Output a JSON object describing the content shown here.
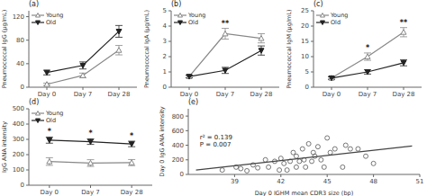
{
  "chart_data": [
    {
      "type": "line",
      "title": "(a)",
      "ylabel": "Pneumococcal IgG (µg/mL)",
      "categories": [
        "Day 0",
        "Day 7",
        "Day 28"
      ],
      "series": [
        {
          "name": "Young",
          "color": "#888888",
          "marker": "triangle-up-open",
          "values": [
            5,
            20,
            63
          ],
          "errors": [
            2,
            4,
            8
          ]
        },
        {
          "name": "Old",
          "color": "#222222",
          "marker": "triangle-down",
          "values": [
            25,
            37,
            95
          ],
          "errors": [
            4,
            6,
            10
          ]
        }
      ],
      "ylim": [
        0,
        130
      ],
      "yticks": [
        0,
        40,
        80,
        120
      ],
      "legend": "upper left"
    },
    {
      "type": "line",
      "title": "(b)",
      "ylabel": "Pneumococcal IgA (µg/mL)",
      "categories": [
        "Day 0",
        "Day 7",
        "Day 28"
      ],
      "series": [
        {
          "name": "Young",
          "color": "#888888",
          "marker": "triangle-up-open",
          "values": [
            0.7,
            3.5,
            3.2
          ],
          "errors": [
            0.08,
            0.35,
            0.3
          ]
        },
        {
          "name": "Old",
          "color": "#222222",
          "marker": "triangle-down",
          "values": [
            0.7,
            1.1,
            2.4
          ],
          "errors": [
            0.08,
            0.2,
            0.3
          ]
        }
      ],
      "ylim": [
        0,
        5
      ],
      "yticks": [
        0,
        1,
        2,
        3,
        4,
        5
      ],
      "legend": "upper left",
      "annotations": [
        {
          "category": "Day 7",
          "text": "**"
        }
      ]
    },
    {
      "type": "line",
      "title": "(c)",
      "ylabel": "Pneumococcal IgM (µg/mL)",
      "categories": [
        "Day 0",
        "Day 7",
        "Day 28"
      ],
      "series": [
        {
          "name": "Young",
          "color": "#888888",
          "marker": "triangle-up-open",
          "values": [
            3,
            10,
            18
          ],
          "errors": [
            0.4,
            1.2,
            1.5
          ]
        },
        {
          "name": "Old",
          "color": "#222222",
          "marker": "triangle-down",
          "values": [
            3,
            5,
            8
          ],
          "errors": [
            0.4,
            0.7,
            1.0
          ]
        }
      ],
      "ylim": [
        0,
        25
      ],
      "yticks": [
        0,
        5,
        10,
        15,
        20,
        25
      ],
      "legend": "upper left",
      "annotations": [
        {
          "category": "Day 7",
          "text": "*"
        },
        {
          "category": "Day 28",
          "text": "**"
        }
      ]
    },
    {
      "type": "line",
      "title": "(d)",
      "ylabel": "IgG ANA intensity",
      "categories": [
        "Day 0",
        "Day 7",
        "Day 28"
      ],
      "series": [
        {
          "name": "Young",
          "color": "#888888",
          "marker": "triangle-up-open",
          "values": [
            155,
            145,
            148
          ],
          "errors": [
            25,
            22,
            20
          ]
        },
        {
          "name": "Old",
          "color": "#222222",
          "marker": "triangle-down",
          "values": [
            295,
            285,
            270
          ],
          "errors": [
            20,
            18,
            18
          ]
        }
      ],
      "ylim": [
        0,
        500
      ],
      "yticks": [
        0,
        100,
        200,
        300,
        400,
        500
      ],
      "legend": "upper left",
      "annotations": [
        {
          "category": "Day 0",
          "text": "*"
        },
        {
          "category": "Day 7",
          "text": "*"
        },
        {
          "category": "Day 28",
          "text": "*"
        }
      ]
    },
    {
      "type": "scatter",
      "title": "(e)",
      "xlabel": "Day 0 IGHM mean CDR3 size (bp)",
      "ylabel": "Day 0 IgG ANA intensity",
      "xlim": [
        36,
        51
      ],
      "ylim": [
        0,
        900
      ],
      "xticks": [
        39,
        42,
        45,
        48,
        51
      ],
      "yticks": [
        0,
        200,
        400,
        600,
        800
      ],
      "series": [
        {
          "type": "scatter",
          "color": "#555555",
          "marker": "circle-open",
          "x": [
            38.2,
            39.1,
            39.4,
            39.8,
            40.2,
            40.5,
            41.0,
            41.2,
            41.6,
            41.9,
            42.0,
            42.2,
            42.4,
            42.6,
            42.8,
            43.0,
            43.0,
            43.2,
            43.4,
            43.5,
            43.6,
            43.8,
            44.0,
            44.1,
            44.2,
            44.4,
            44.6,
            44.8,
            45.0,
            45.2,
            45.5,
            46.0,
            46.2,
            46.5,
            47.0,
            47.5,
            48.0
          ],
          "y": [
            60,
            100,
            80,
            50,
            130,
            90,
            200,
            100,
            180,
            60,
            220,
            150,
            60,
            180,
            300,
            250,
            100,
            180,
            350,
            200,
            100,
            420,
            180,
            300,
            250,
            380,
            200,
            100,
            500,
            300,
            350,
            100,
            400,
            350,
            350,
            250,
            150
          ]
        },
        {
          "type": "line",
          "color": "#444444",
          "x": [
            36.5,
            50.5
          ],
          "y": [
            60,
            390
          ]
        }
      ],
      "annotations": [
        {
          "text": "r² = 0.139"
        },
        {
          "text": "P = 0.007"
        }
      ]
    }
  ]
}
